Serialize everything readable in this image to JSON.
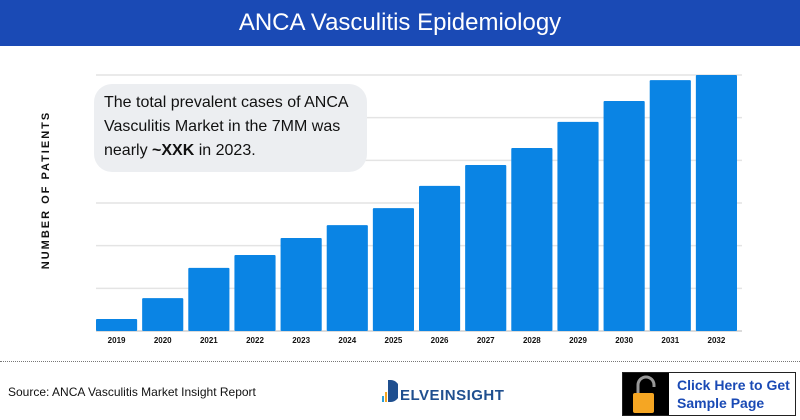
{
  "header": {
    "title": "ANCA Vasculitis Epidemiology"
  },
  "callout": {
    "text_before": "The total prevalent cases of ANCA Vasculitis Market in the 7MM was nearly ",
    "highlight": "~XXK",
    "text_after": " in 2023."
  },
  "footer": {
    "source": "Source: ANCA Vasculitis Market Insight Report",
    "logo_text": "ELVEINSIGHT",
    "logo_letter": "D",
    "cta_line1": "Click Here to Get",
    "cta_line2": "Sample Page",
    "cta_icon": "unlock-icon"
  },
  "colors": {
    "header": "#1a4ab5",
    "bar": "#0a84e4",
    "callout_bg": "#eceef1",
    "lock": "#f5a623"
  },
  "chart_data": {
    "type": "bar",
    "title": "ANCA Vasculitis Epidemiology",
    "xlabel": "",
    "ylabel": "NUMBER OF PATIENTS",
    "categories": [
      "2019",
      "2020",
      "2021",
      "2022",
      "2023",
      "2024",
      "2025",
      "2026",
      "2027",
      "2028",
      "2029",
      "2030",
      "2031",
      "2032"
    ],
    "values": [
      0.28,
      0.77,
      1.48,
      1.78,
      2.18,
      2.48,
      2.88,
      3.4,
      3.89,
      4.29,
      4.9,
      5.39,
      5.88,
      6.0
    ],
    "ylim": [
      0,
      6
    ],
    "grid": true,
    "y_tick_labels_shown": false
  }
}
